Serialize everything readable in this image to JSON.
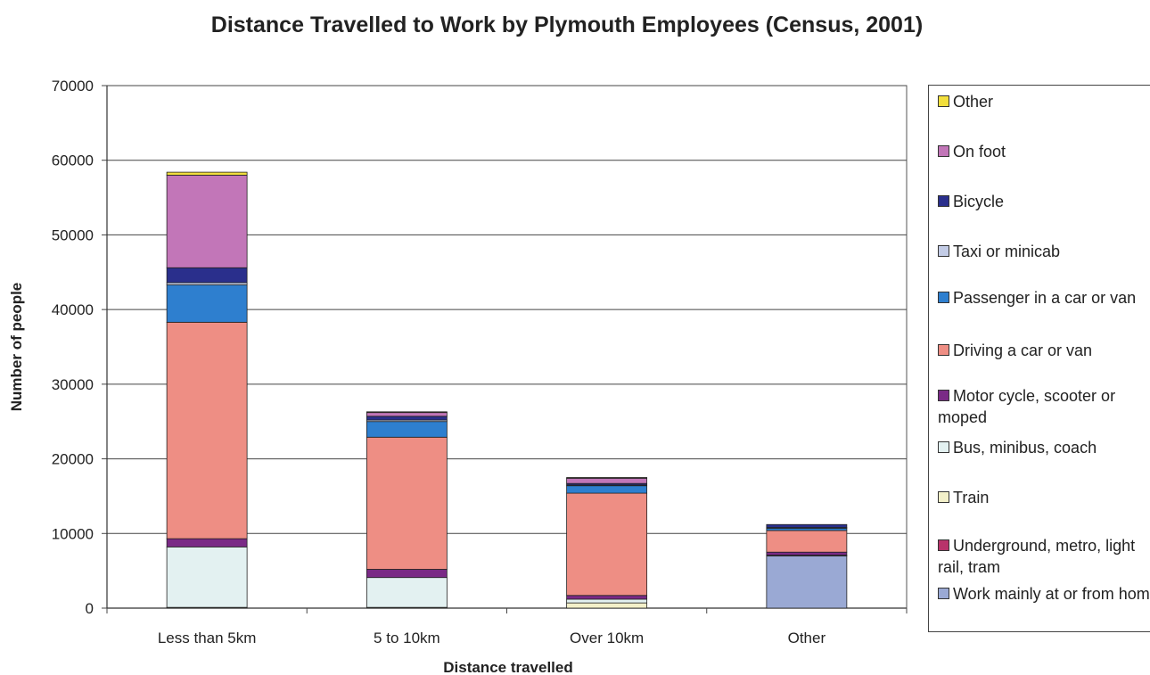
{
  "chart_data": {
    "type": "bar",
    "stacked": true,
    "title": "Distance Travelled to Work by Plymouth Employees (Census, 2001)",
    "xlabel": "Distance travelled",
    "ylabel": "Number of people",
    "ylim": [
      0,
      70000
    ],
    "yticks": [
      "0",
      "10000",
      "20000",
      "30000",
      "40000",
      "50000",
      "60000",
      "70000"
    ],
    "grid": true,
    "legend_position": "right",
    "categories": [
      "Less than 5km",
      "5 to 10km",
      "Over 10km",
      "Other"
    ],
    "series": [
      {
        "name": "Work mainly at or from home",
        "color": "#9aa9d4",
        "values": [
          0,
          0,
          0,
          7000
        ]
      },
      {
        "name": "Underground, metro, light rail, tram",
        "color": "#b8336a",
        "values": [
          0,
          0,
          0,
          0
        ]
      },
      {
        "name": "Train",
        "color": "#f3f0c9",
        "values": [
          100,
          100,
          700,
          100
        ]
      },
      {
        "name": "Bus, minibus, coach",
        "color": "#e3f1f1",
        "values": [
          8100,
          4000,
          500,
          0
        ]
      },
      {
        "name": "Motor cycle, scooter or moped",
        "color": "#7a2a86",
        "values": [
          1100,
          1100,
          500,
          400
        ]
      },
      {
        "name": "Driving a car or van",
        "color": "#ee8e84",
        "values": [
          29000,
          17700,
          13700,
          2900
        ]
      },
      {
        "name": "Passenger in a car or van",
        "color": "#2e7fcf",
        "values": [
          5000,
          2100,
          1000,
          300
        ]
      },
      {
        "name": "Taxi or minicab",
        "color": "#c3cce6",
        "values": [
          300,
          200,
          100,
          100
        ]
      },
      {
        "name": "Bicycle",
        "color": "#2a2f8c",
        "values": [
          2000,
          500,
          200,
          400
        ]
      },
      {
        "name": "On foot",
        "color": "#c276b8",
        "values": [
          12400,
          500,
          700,
          0
        ]
      },
      {
        "name": "Other",
        "color": "#f2df3d",
        "values": [
          400,
          100,
          100,
          0
        ]
      }
    ]
  },
  "legend_order": [
    10,
    9,
    8,
    7,
    6,
    5,
    4,
    3,
    2,
    1,
    0
  ]
}
